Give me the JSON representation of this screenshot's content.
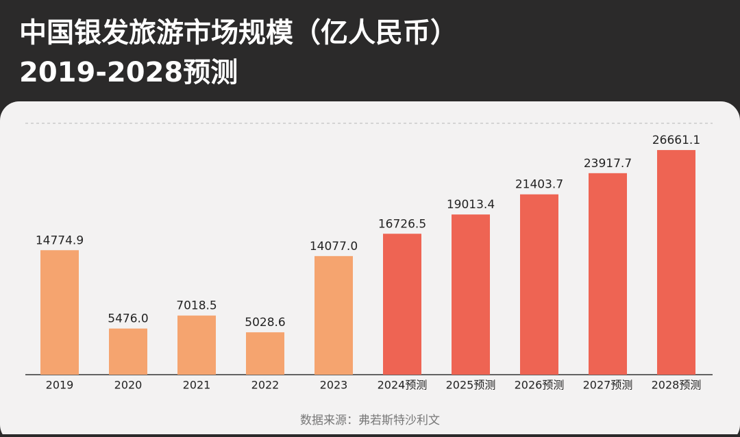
{
  "chart_data": {
    "type": "bar",
    "title": "中国银发旅游市场规模（亿人民币）",
    "subtitle": "2019-2028预测",
    "categories": [
      "2019",
      "2020",
      "2021",
      "2022",
      "2023",
      "2024预测",
      "2025预测",
      "2026预测",
      "2027预测",
      "2028预测"
    ],
    "values": [
      14774.9,
      5476.0,
      7018.5,
      5028.6,
      14077.0,
      16726.5,
      19013.4,
      21403.7,
      23917.7,
      26661.1
    ],
    "value_labels": [
      "14774.9",
      "5476.0",
      "7018.5",
      "5028.6",
      "14077.0",
      "16726.5",
      "19013.4",
      "21403.7",
      "23917.7",
      "26661.1"
    ],
    "colors": [
      "#f5a46f",
      "#f5a46f",
      "#f5a46f",
      "#f5a46f",
      "#f5a46f",
      "#ee6453",
      "#ee6453",
      "#ee6453",
      "#ee6453",
      "#ee6453"
    ],
    "ylim": [
      0,
      30000
    ],
    "source": "数据来源：弗若斯特沙利文"
  }
}
